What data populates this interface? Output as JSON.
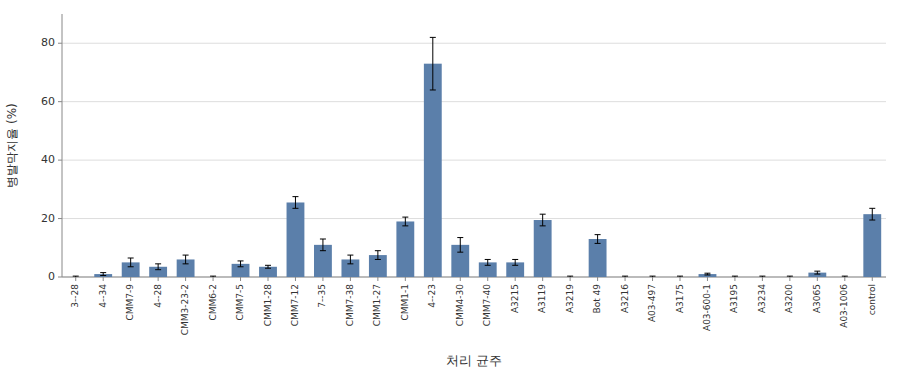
{
  "chart_data": {
    "type": "bar",
    "categories": [
      "3--28",
      "4--34",
      "CMM7-9",
      "4--28",
      "CMM3-23-2",
      "CMM6-2",
      "CMM7-5",
      "CMM1-28",
      "CMM7-12",
      "7--35",
      "CMM7-38",
      "CMM1-27",
      "CMM1-1",
      "4--23",
      "CMM4-30",
      "CMM7-40",
      "A3215",
      "A3119",
      "A3219",
      "Bot 49",
      "A3216",
      "A03-497",
      "A3175",
      "A03-600-1",
      "A3195",
      "A3234",
      "A3200",
      "A3065",
      "A03-1006",
      "control"
    ],
    "values": [
      0.0,
      1.0,
      5.0,
      3.5,
      6.0,
      0.0,
      4.5,
      3.5,
      25.5,
      11.0,
      6.0,
      7.5,
      19.0,
      73.0,
      11.0,
      5.0,
      5.0,
      19.5,
      0.0,
      13.0,
      0.0,
      0.0,
      0.0,
      1.0,
      0.0,
      0.0,
      0.0,
      1.5,
      0.0,
      21.5
    ],
    "errors": [
      0.3,
      0.5,
      1.5,
      1.0,
      1.5,
      0.3,
      1.0,
      0.5,
      2.0,
      2.0,
      1.5,
      1.5,
      1.5,
      9.0,
      2.5,
      1.0,
      1.0,
      2.0,
      0.3,
      1.5,
      0.3,
      0.3,
      0.3,
      0.3,
      0.3,
      0.3,
      0.3,
      0.5,
      0.3,
      2.0
    ],
    "color": "#5b7faa",
    "xlabel": "처리 균주",
    "ylabel": "병발막지율 (%)",
    "ylim": [
      0,
      90
    ],
    "yticks": [
      0,
      20,
      40,
      60,
      80
    ],
    "grid": true
  }
}
